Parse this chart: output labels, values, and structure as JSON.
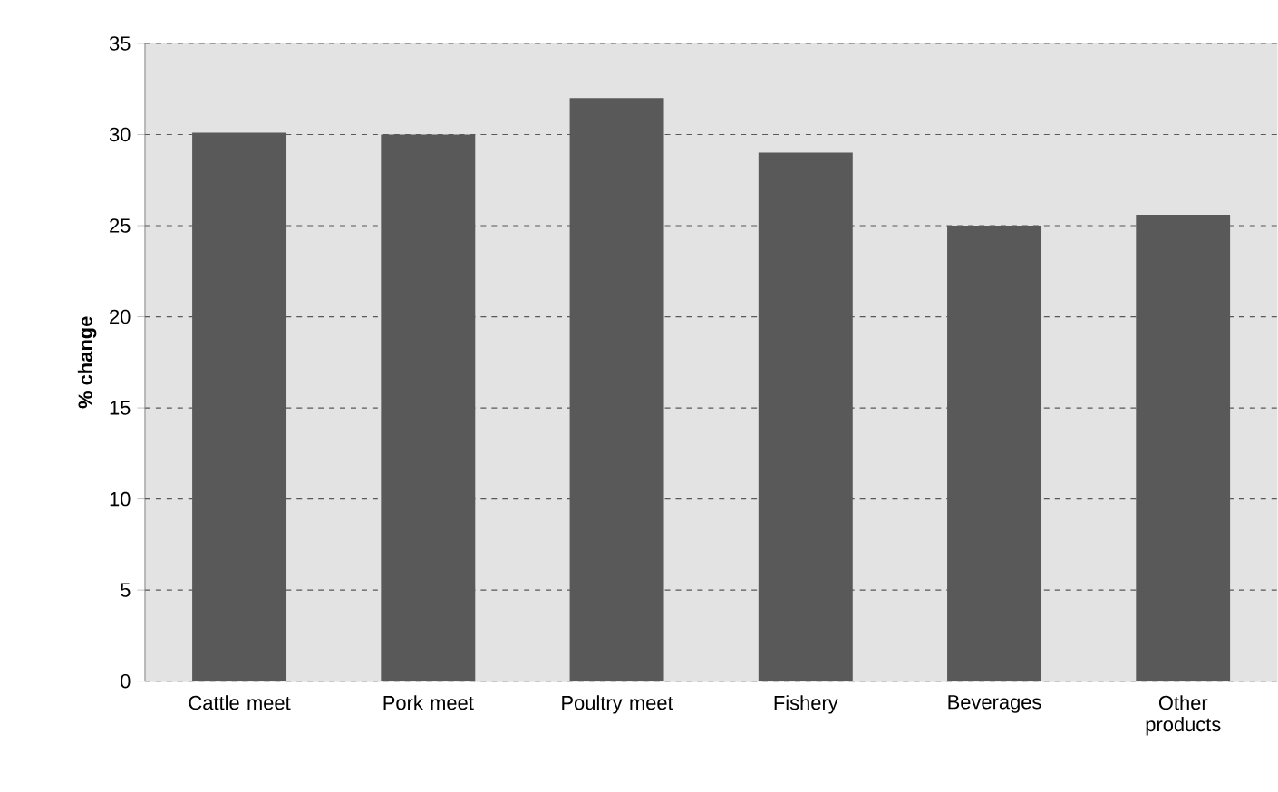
{
  "chart_data": {
    "type": "bar",
    "ylabel": "% change",
    "categories": [
      "Cattle meet",
      "Pork meet",
      "Poultry meet",
      "Fishery",
      "Beverages",
      "Other products"
    ],
    "values": [
      30.1,
      30.0,
      32.0,
      29.0,
      25.0,
      25.6
    ],
    "color": "#595959",
    "ylim": [
      0,
      35
    ],
    "yticks": [
      0,
      5,
      10,
      15,
      20,
      25,
      30,
      35
    ],
    "grid": "y"
  }
}
